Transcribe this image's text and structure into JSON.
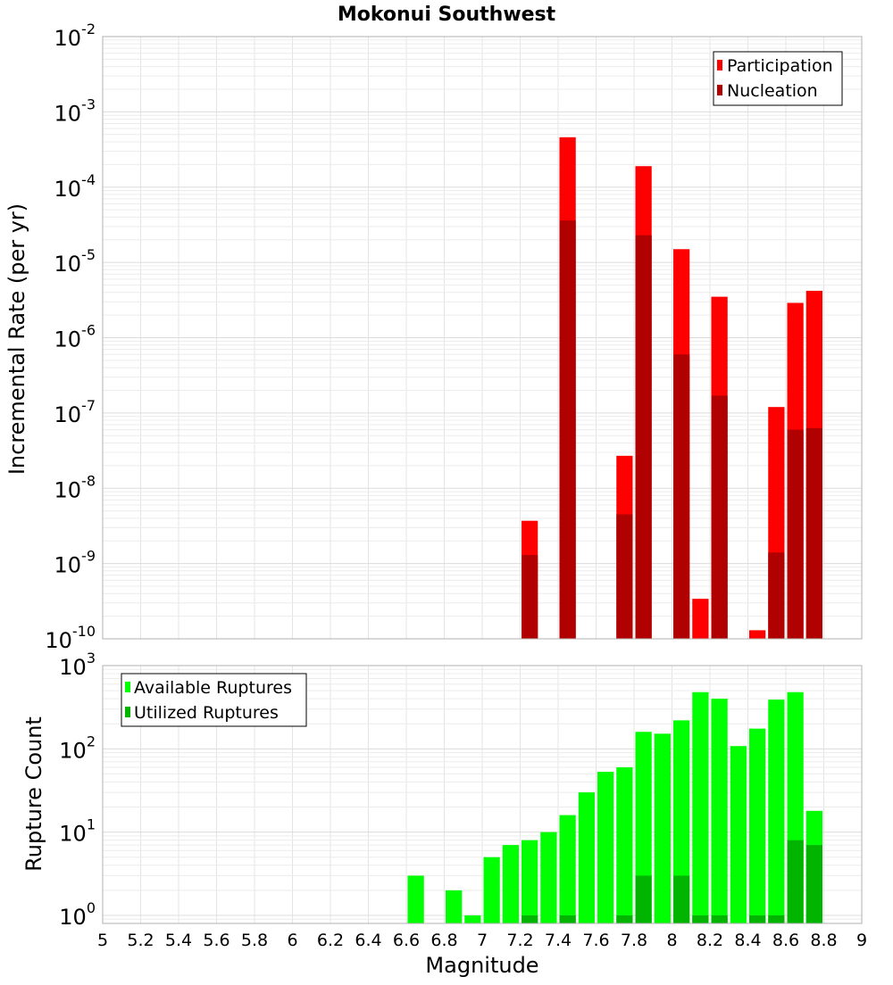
{
  "chart_data": [
    {
      "type": "bar",
      "title": "Mokonui Southwest",
      "xlabel": "",
      "ylabel": "Incremental Rate (per yr)",
      "y_scale": "log",
      "ylim": [
        1e-10,
        0.01
      ],
      "xlim": [
        5,
        9
      ],
      "bar_width": 0.1,
      "grid": true,
      "legend_position": "top-right",
      "y_ticks": [
        {
          "base": "10",
          "exp": "-10",
          "value": 1e-10
        },
        {
          "base": "10",
          "exp": "-9",
          "value": 1e-09
        },
        {
          "base": "10",
          "exp": "-8",
          "value": 1e-08
        },
        {
          "base": "10",
          "exp": "-7",
          "value": 1e-07
        },
        {
          "base": "10",
          "exp": "-6",
          "value": 1e-06
        },
        {
          "base": "10",
          "exp": "-5",
          "value": 1e-05
        },
        {
          "base": "10",
          "exp": "-4",
          "value": 0.0001
        },
        {
          "base": "10",
          "exp": "-3",
          "value": 0.001
        },
        {
          "base": "10",
          "exp": "-2",
          "value": 0.01
        }
      ],
      "series": [
        {
          "name": "Participation",
          "color": "#ff0000",
          "points": [
            {
              "x": 7.25,
              "y": 3.7e-09
            },
            {
              "x": 7.45,
              "y": 0.00046
            },
            {
              "x": 7.75,
              "y": 2.7e-08
            },
            {
              "x": 7.85,
              "y": 0.00019
            },
            {
              "x": 8.05,
              "y": 1.5e-05
            },
            {
              "x": 8.15,
              "y": 3.4e-10
            },
            {
              "x": 8.25,
              "y": 3.5e-06
            },
            {
              "x": 8.45,
              "y": 1.3e-10
            },
            {
              "x": 8.55,
              "y": 1.2e-07
            },
            {
              "x": 8.65,
              "y": 2.9e-06
            },
            {
              "x": 8.75,
              "y": 4.2e-06
            }
          ]
        },
        {
          "name": "Nucleation",
          "color": "#b00000",
          "points": [
            {
              "x": 7.25,
              "y": 1.3e-09
            },
            {
              "x": 7.45,
              "y": 3.6e-05
            },
            {
              "x": 7.75,
              "y": 4.5e-09
            },
            {
              "x": 7.85,
              "y": 2.3e-05
            },
            {
              "x": 8.05,
              "y": 6e-07
            },
            {
              "x": 8.25,
              "y": 1.7e-07
            },
            {
              "x": 8.55,
              "y": 1.4e-09
            },
            {
              "x": 8.65,
              "y": 6e-08
            },
            {
              "x": 8.75,
              "y": 6.3e-08
            }
          ]
        }
      ]
    },
    {
      "type": "bar",
      "title": "",
      "xlabel": "Magnitude",
      "ylabel": "Rupture Count",
      "y_scale": "log",
      "ylim": [
        0.8,
        1000
      ],
      "xlim": [
        5,
        9
      ],
      "bar_width": 0.1,
      "grid": true,
      "legend_position": "top-left",
      "x_ticks": [
        "5",
        "5.2",
        "5.4",
        "5.6",
        "5.8",
        "6",
        "6.2",
        "6.4",
        "6.6",
        "6.8",
        "7",
        "7.2",
        "7.4",
        "7.6",
        "7.8",
        "8",
        "8.2",
        "8.4",
        "8.6",
        "8.8",
        "9"
      ],
      "y_ticks": [
        {
          "base": "10",
          "exp": "0",
          "value": 1
        },
        {
          "base": "10",
          "exp": "1",
          "value": 10
        },
        {
          "base": "10",
          "exp": "2",
          "value": 100
        },
        {
          "base": "10",
          "exp": "3",
          "value": 1000
        }
      ],
      "series": [
        {
          "name": "Available Ruptures",
          "color": "#00ff00",
          "points": [
            {
              "x": 6.65,
              "y": 3
            },
            {
              "x": 6.85,
              "y": 2
            },
            {
              "x": 6.95,
              "y": 1
            },
            {
              "x": 7.05,
              "y": 5
            },
            {
              "x": 7.15,
              "y": 7
            },
            {
              "x": 7.25,
              "y": 8
            },
            {
              "x": 7.35,
              "y": 10
            },
            {
              "x": 7.45,
              "y": 16
            },
            {
              "x": 7.55,
              "y": 30
            },
            {
              "x": 7.65,
              "y": 53
            },
            {
              "x": 7.75,
              "y": 60
            },
            {
              "x": 7.85,
              "y": 160
            },
            {
              "x": 7.95,
              "y": 152
            },
            {
              "x": 8.05,
              "y": 220
            },
            {
              "x": 8.15,
              "y": 480
            },
            {
              "x": 8.25,
              "y": 400
            },
            {
              "x": 8.35,
              "y": 108
            },
            {
              "x": 8.45,
              "y": 175
            },
            {
              "x": 8.55,
              "y": 390
            },
            {
              "x": 8.65,
              "y": 480
            },
            {
              "x": 8.75,
              "y": 18
            }
          ]
        },
        {
          "name": "Utilized Ruptures",
          "color": "#00b400",
          "points": [
            {
              "x": 7.25,
              "y": 1
            },
            {
              "x": 7.45,
              "y": 1
            },
            {
              "x": 7.75,
              "y": 1
            },
            {
              "x": 7.85,
              "y": 3
            },
            {
              "x": 8.05,
              "y": 3
            },
            {
              "x": 8.15,
              "y": 1
            },
            {
              "x": 8.25,
              "y": 1
            },
            {
              "x": 8.45,
              "y": 1
            },
            {
              "x": 8.55,
              "y": 1
            },
            {
              "x": 8.65,
              "y": 8
            },
            {
              "x": 8.75,
              "y": 7
            }
          ]
        }
      ]
    }
  ]
}
